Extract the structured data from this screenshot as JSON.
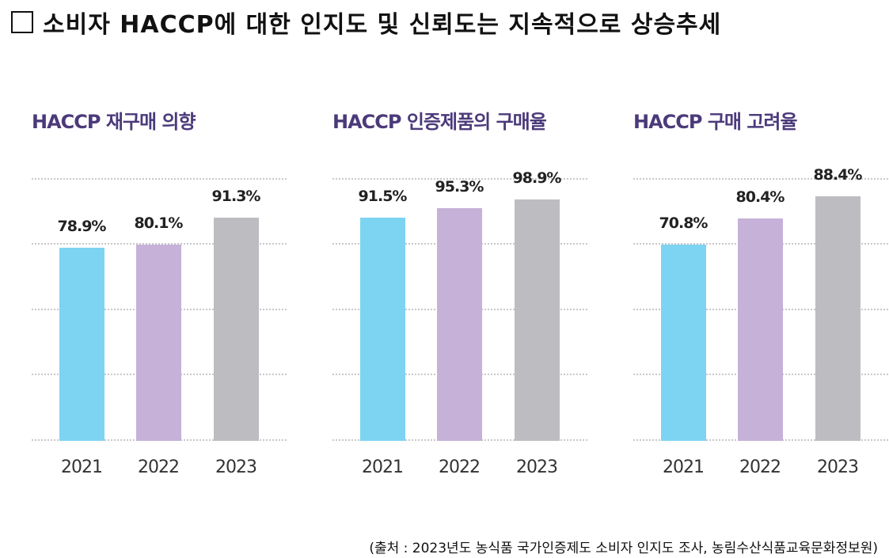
{
  "title": "소비자 HACCP에 대한 인지도 및 신뢰도는 지속적으로 상승추세",
  "source": "(출처 : 2023년도 농식품 국가인증제도 소비자 인지도 조사, 농림수산식품교육문화정보원)",
  "colors": {
    "2021": "#7dd3f2",
    "2022": "#c6b1d8",
    "2023": "#bdbdc1",
    "title": "#4b3a7a"
  },
  "chart_data": [
    {
      "type": "bar",
      "title": "HACCP 재구매 의향",
      "categories": [
        "2021",
        "2022",
        "2023"
      ],
      "values": [
        78.9,
        80.1,
        91.3
      ],
      "labels": [
        "78.9%",
        "80.1%",
        "91.3%"
      ],
      "grid": true
    },
    {
      "type": "bar",
      "title": "HACCP 인증제품의 구매율",
      "categories": [
        "2021",
        "2022",
        "2023"
      ],
      "values": [
        91.5,
        95.3,
        98.9
      ],
      "labels": [
        "91.5%",
        "95.3%",
        "98.9%"
      ],
      "grid": true
    },
    {
      "type": "bar",
      "title": "HACCP 구매 고려율",
      "categories": [
        "2021",
        "2022",
        "2023"
      ],
      "values": [
        70.8,
        80.4,
        88.4
      ],
      "labels": [
        "70.8%",
        "80.4%",
        "88.4%"
      ],
      "grid": true
    }
  ]
}
